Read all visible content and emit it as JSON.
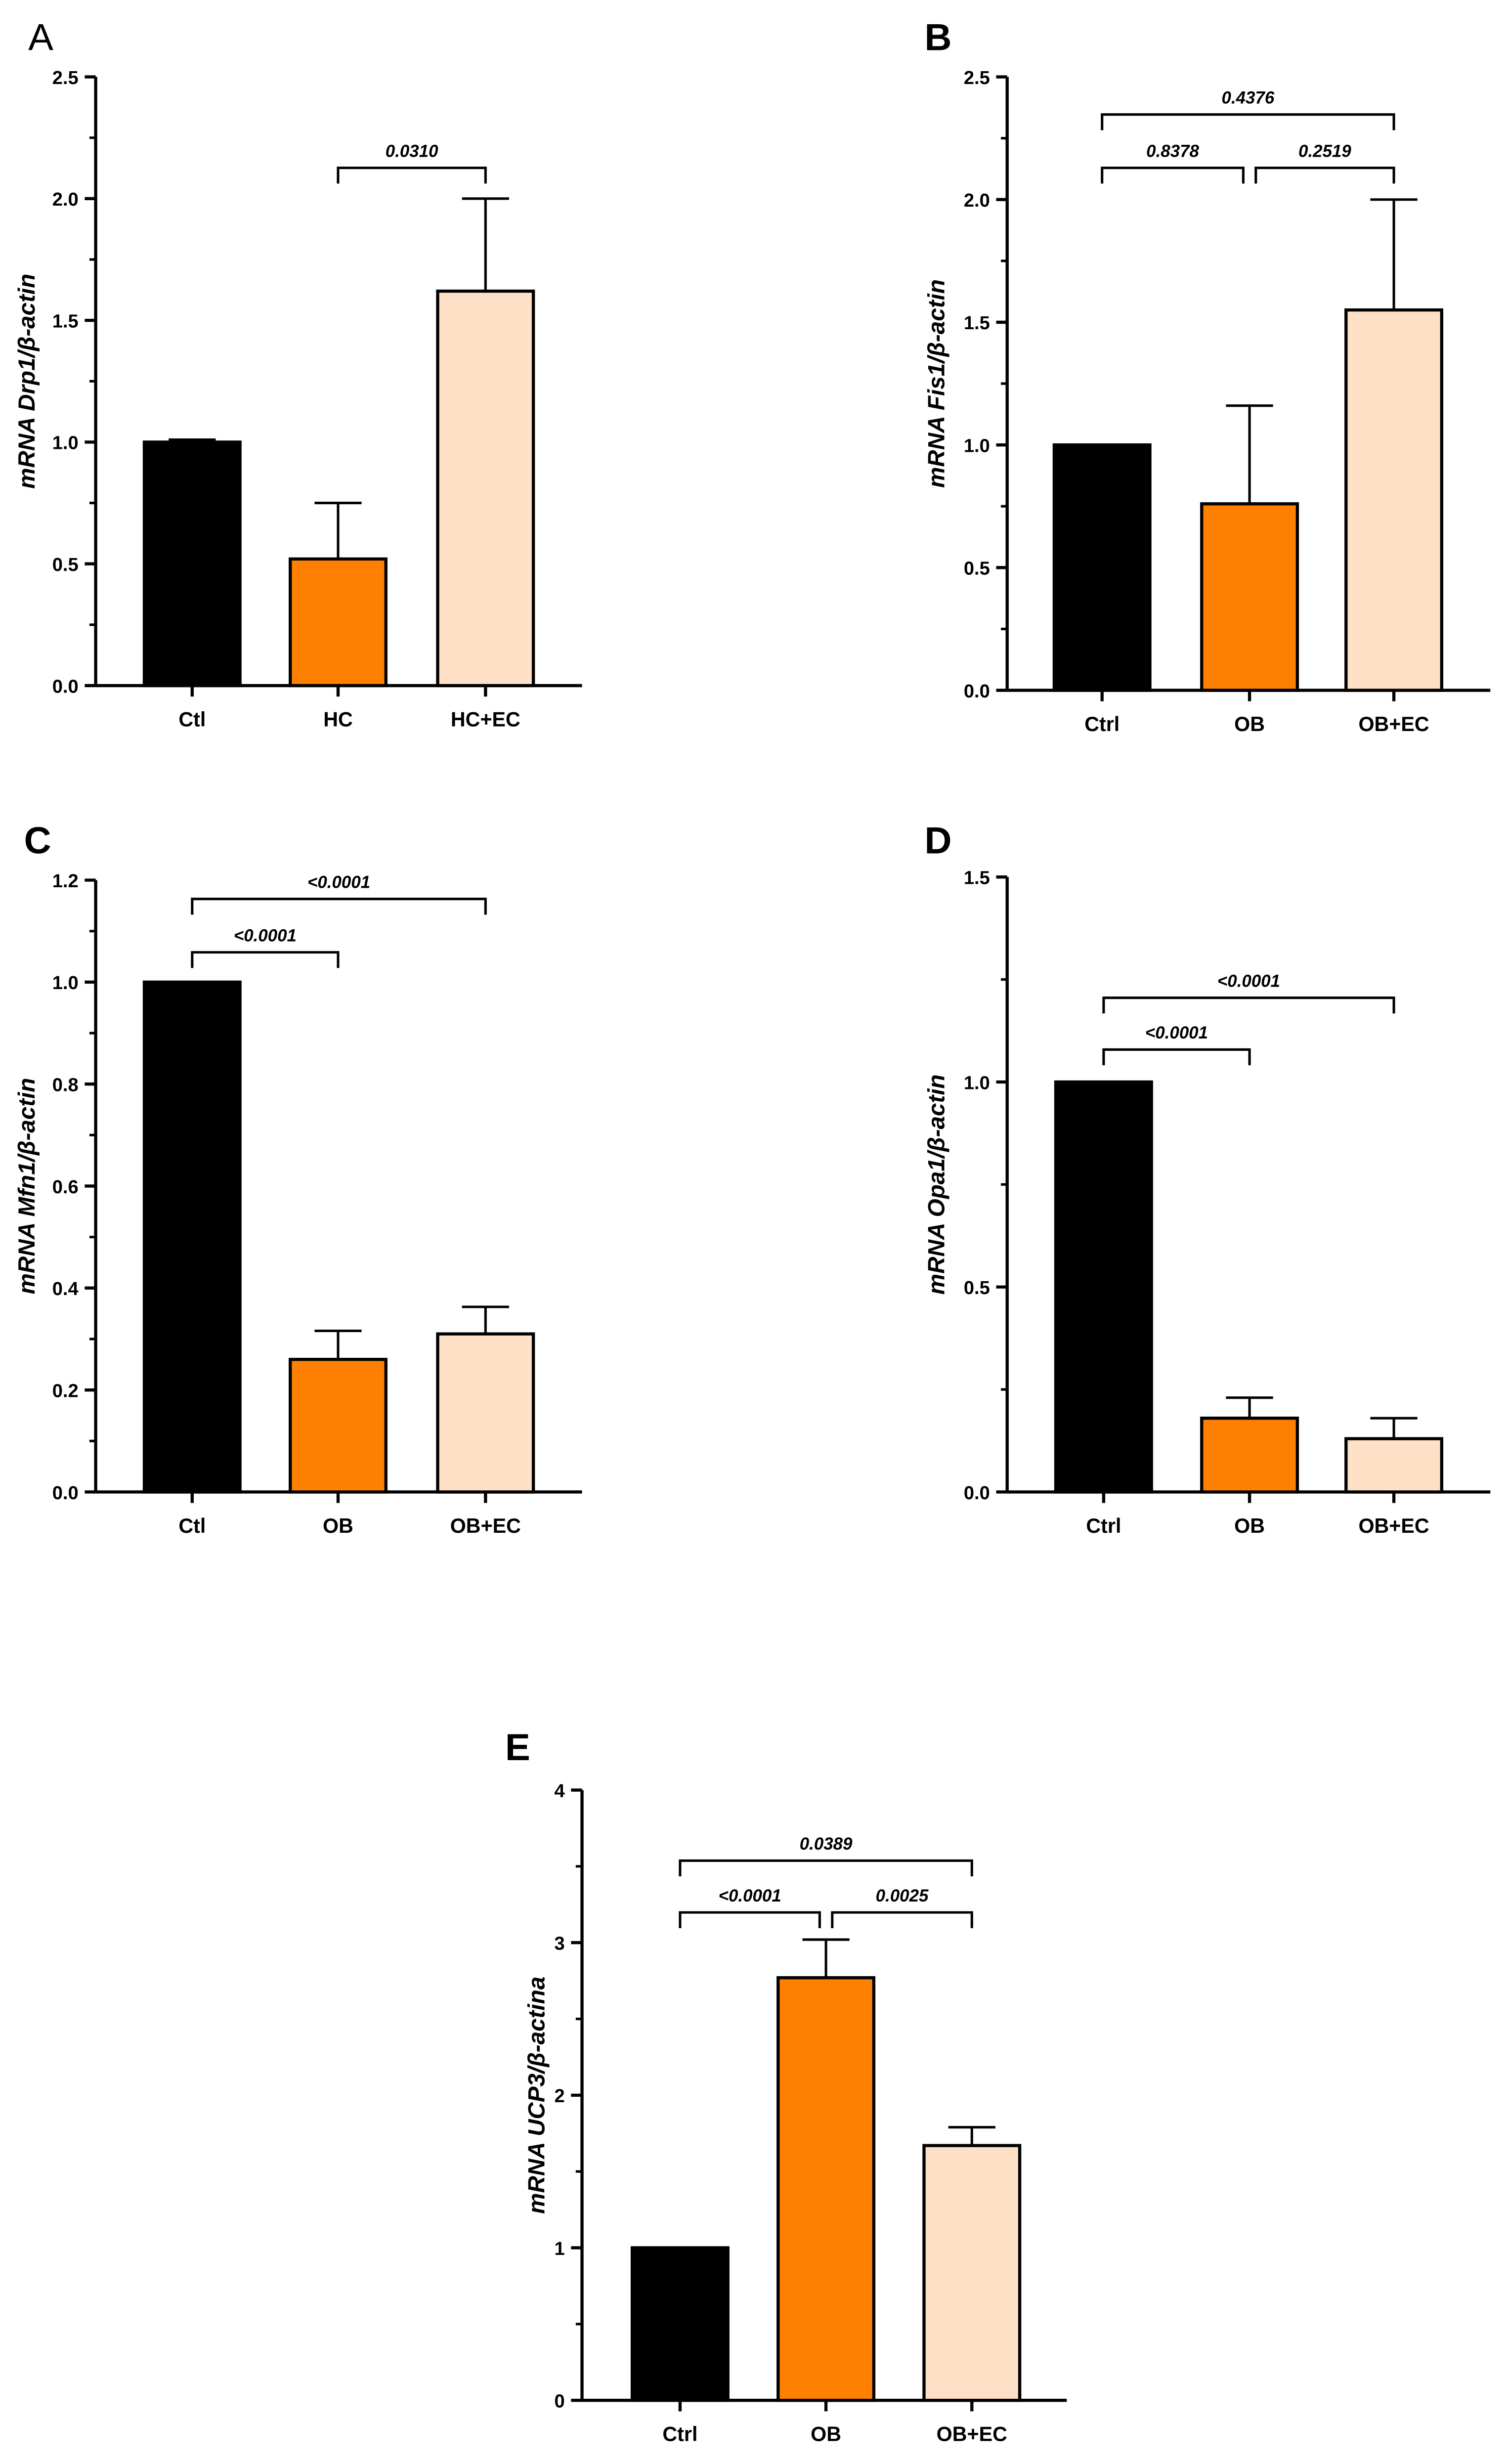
{
  "chart_data": [
    {
      "id": "A",
      "panel_letter": "A",
      "type": "bar",
      "ylabel": "mRNA Drp1/β-actin",
      "ylim": [
        0,
        2.5
      ],
      "yticks": [
        "0.0",
        "0.5",
        "1.0",
        "1.5",
        "2.0",
        "2.5"
      ],
      "categories": [
        "Ctl",
        "HC",
        "HC+EC"
      ],
      "values": [
        1.0,
        0.52,
        1.62
      ],
      "errors": [
        0.01,
        0.23,
        0.38
      ],
      "colors": [
        "#000000",
        "#ff7f00",
        "#fde0c5"
      ],
      "comparisons": [
        {
          "from": 1,
          "to": 2,
          "label": "0.0310",
          "level": 0
        }
      ]
    },
    {
      "id": "B",
      "panel_letter": "B",
      "type": "bar",
      "ylabel": "mRNA Fis1/β-actin",
      "ylim": [
        0,
        2.5
      ],
      "yticks": [
        "0.0",
        "0.5",
        "1.0",
        "1.5",
        "2.0",
        "2.5"
      ],
      "categories": [
        "Ctrl",
        "OB",
        "OB+EC"
      ],
      "values": [
        1.0,
        0.76,
        1.55
      ],
      "errors": [
        0.0,
        0.4,
        0.45
      ],
      "colors": [
        "#000000",
        "#ff7f00",
        "#fde0c5"
      ],
      "comparisons": [
        {
          "from": 0,
          "to": 1,
          "label": "0.8378",
          "level": 0
        },
        {
          "from": 1,
          "to": 2,
          "label": "0.2519",
          "level": 0
        },
        {
          "from": 0,
          "to": 2,
          "label": "0.4376",
          "level": 1
        }
      ]
    },
    {
      "id": "C",
      "panel_letter": "C",
      "type": "bar",
      "ylabel": "mRNA Mfn1/β-actin",
      "ylim": [
        0,
        1.2
      ],
      "yticks": [
        "0.0",
        "0.2",
        "0.4",
        "0.6",
        "0.8",
        "1.0",
        "1.2"
      ],
      "categories": [
        "Ctl",
        "OB",
        "OB+EC"
      ],
      "values": [
        1.0,
        0.26,
        0.31
      ],
      "errors": [
        0.0,
        0.056,
        0.053
      ],
      "colors": [
        "#000000",
        "#ff7f00",
        "#fde0c5"
      ],
      "comparisons": [
        {
          "from": 0,
          "to": 1,
          "label": "<0.0001",
          "level": 0
        },
        {
          "from": 0,
          "to": 2,
          "label": "<0.0001",
          "level": 1
        }
      ]
    },
    {
      "id": "D",
      "panel_letter": "D",
      "type": "bar",
      "ylabel": "mRNA Opa1/β-actin",
      "ylim": [
        0,
        1.5
      ],
      "yticks": [
        "0.0",
        "0.5",
        "1.0",
        "1.5"
      ],
      "categories": [
        "Ctrl",
        "OB",
        "OB+EC"
      ],
      "values": [
        1.0,
        0.18,
        0.13
      ],
      "errors": [
        0.0,
        0.05,
        0.05
      ],
      "colors": [
        "#000000",
        "#ff7f00",
        "#fde0c5"
      ],
      "comparisons": [
        {
          "from": 0,
          "to": 1,
          "label": "<0.0001",
          "level": 0
        },
        {
          "from": 0,
          "to": 2,
          "label": "<0.0001",
          "level": 1
        }
      ]
    },
    {
      "id": "E",
      "panel_letter": "E",
      "type": "bar",
      "ylabel": "mRNA UCP3/β-actina",
      "ylim": [
        0,
        4
      ],
      "yticks": [
        "0",
        "1",
        "2",
        "3",
        "4"
      ],
      "categories": [
        "Ctrl",
        "OB",
        "OB+EC"
      ],
      "values": [
        1.0,
        2.77,
        1.67
      ],
      "errors": [
        0.0,
        0.25,
        0.12
      ],
      "colors": [
        "#000000",
        "#ff7f00",
        "#fde0c5"
      ],
      "comparisons": [
        {
          "from": 0,
          "to": 1,
          "label": "<0.0001",
          "level": 0
        },
        {
          "from": 1,
          "to": 2,
          "label": "0.0025",
          "level": 0
        },
        {
          "from": 0,
          "to": 2,
          "label": "0.0389",
          "level": 1
        }
      ]
    }
  ]
}
